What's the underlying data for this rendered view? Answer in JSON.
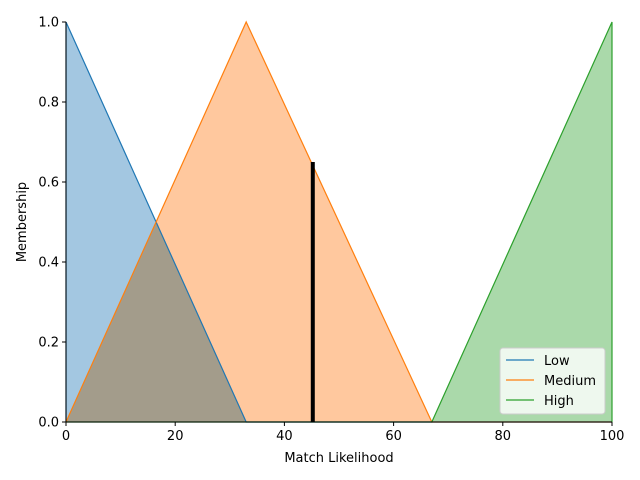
{
  "chart_data": {
    "type": "area",
    "xlabel": "Match Likelihood",
    "ylabel": "Membership",
    "xlim": [
      0,
      100
    ],
    "ylim": [
      0,
      1.0
    ],
    "xticks": [
      "0",
      "20",
      "40",
      "60",
      "80",
      "100"
    ],
    "yticks": [
      "0.0",
      "0.2",
      "0.4",
      "0.6",
      "0.8",
      "1.0"
    ],
    "grid": false,
    "legend_position": "bottom-right",
    "series": [
      {
        "name": "Low",
        "color": "#1f77b4",
        "fill": "#a3c7e1",
        "x": [
          0,
          0,
          33,
          100
        ],
        "y": [
          0,
          1,
          0,
          0
        ]
      },
      {
        "name": "Medium",
        "color": "#ff7f0e",
        "fill": "#ffc89e",
        "x": [
          0,
          33,
          67,
          100
        ],
        "y": [
          0,
          1,
          0,
          0
        ]
      },
      {
        "name": "High",
        "color": "#2ca02c",
        "fill": "#aad9aa",
        "x": [
          0,
          67,
          100,
          100
        ],
        "y": [
          0,
          0,
          1,
          0
        ]
      }
    ],
    "marker": {
      "x": 45.2,
      "y": 0.65,
      "color": "#000000"
    }
  }
}
